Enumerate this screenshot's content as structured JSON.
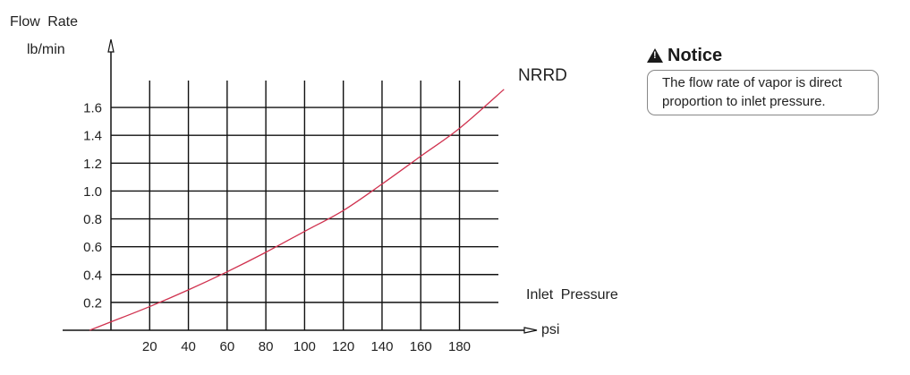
{
  "chart_data": {
    "type": "line",
    "title": "",
    "ylabel": "Flow Rate",
    "yunit": "lb/min",
    "xlabel": "Inlet Pressure",
    "xunit": "psi",
    "x_ticks": [
      20,
      40,
      60,
      80,
      100,
      120,
      140,
      160,
      180
    ],
    "y_ticks": [
      "0.2",
      "0.4",
      "0.6",
      "0.8",
      "1.0",
      "1.2",
      "1.4",
      "1.6"
    ],
    "xlim": [
      -25,
      220
    ],
    "ylim": [
      0,
      2.1
    ],
    "grid": true,
    "legend": null,
    "annotations": [
      {
        "text": "NRRD",
        "near": "curve end"
      }
    ],
    "series": [
      {
        "name": "NRRD",
        "color": "#d0324f",
        "x": [
          -11,
          0,
          20,
          40,
          60,
          80,
          100,
          120,
          140,
          160,
          180,
          203
        ],
        "y": [
          0.0,
          0.06,
          0.17,
          0.29,
          0.42,
          0.56,
          0.71,
          0.86,
          1.05,
          1.25,
          1.45,
          1.73
        ]
      }
    ]
  },
  "axes": {
    "y_title": "Flow Rate",
    "y_unit": "lb/min",
    "x_title": "Inlet Pressure",
    "x_unit": "psi"
  },
  "curve_label": "NRRD",
  "notice": {
    "icon": "warning-triangle-icon",
    "title": "Notice",
    "text_line1": "The flow rate of vapor is direct",
    "text_line2": "proportion to inlet pressure."
  },
  "colors": {
    "curve": "#d0324f",
    "grid": "#111111",
    "notice_border": "#888888"
  }
}
